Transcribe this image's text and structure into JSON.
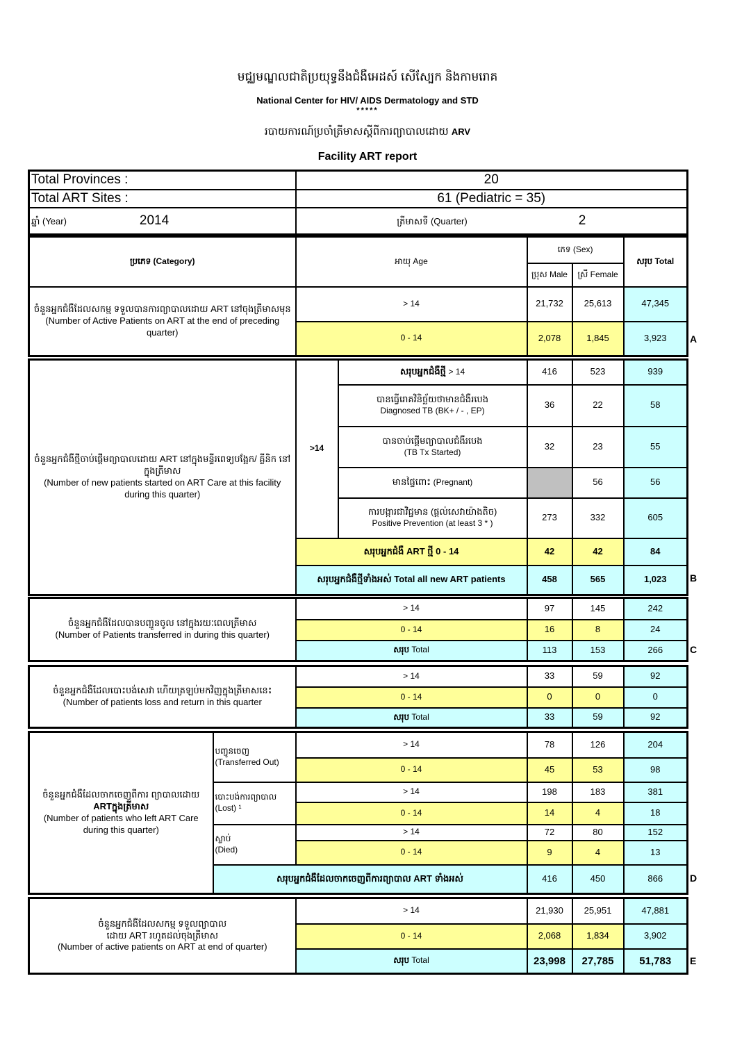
{
  "header": {
    "khmer_org": "មជ្ឈមណ្ឌលជាតិប្រយុទ្ធនឹងជំងឺអេដស៍ សើស្បែក និងកាមរោគ",
    "org": "National Center for HIV/ AIDS Dermatology and STD",
    "stars": "*****",
    "khmer_report": "របាយការណ៍ប្រចាំត្រីមាសស្តីពីការព្យាបាលដោយ",
    "report_arv": "ARV",
    "report": "Facility ART report"
  },
  "info": {
    "provinces_label": "Total Provinces :",
    "provinces": "20",
    "sites_label": "Total ART Sites :",
    "sites": "61 (Pediatric = 35)",
    "year_label": "ឆ្នាំ (Year)",
    "year": "2014",
    "quarter_label": "ត្រីមាសទី (Quarter)",
    "quarter": "2"
  },
  "columns": {
    "category": "ប្រភេទ (Category)",
    "age": "អាយុ Age",
    "sex": "ភេទ (Sex)",
    "male": "ប្រុស Male",
    "female": "ស្រី Female",
    "total": "សរុប Total"
  },
  "labels": {
    "gt14": "> 14",
    "age014": "0 - 14",
    "sum_total": "សរុប",
    "total_en": "Total"
  },
  "A": {
    "letter": "A",
    "desc_kh": "ចំនួនអ្នកជំងឺដែលសកម្ម ទទួលបានការព្យាបាលដោយ ART នៅចុងត្រីមាសមុន",
    "desc_en": "(Number of Active Patients on ART at the end of preceding quarter)",
    "rows": [
      {
        "male": "21,732",
        "female": "25,613",
        "total": "47,345"
      },
      {
        "male": "2,078",
        "female": "1,845",
        "total": "3,923"
      }
    ]
  },
  "B": {
    "letter": "B",
    "desc_kh": "ចំនួនអ្នកជំងឺថ្មីចាប់ផ្តើមព្យាបាលដោយ ART នៅក្នុងមន្ទីរពេទ្យបង្អែក/ គ្លីនិក នៅក្នុងត្រីមាស",
    "desc_en": "(Number of new patients started on ART Care at this facility during this quarter)",
    "age": ">14",
    "rows": [
      {
        "kh": "សរុបអ្នកជំងឺថ្មី",
        "en": "> 14",
        "male": "416",
        "female": "523",
        "total": "939"
      },
      {
        "kh": "បានធ្វើរោគវិនិច្ឆ័យថាមានជំងឺរបេង",
        "en": "Diagnosed TB (BK+ / - , EP)",
        "male": "36",
        "female": "22",
        "total": "58"
      },
      {
        "kh": "បានចាប់ផ្តើមព្យាបាលជំងឺរបេង",
        "en": "(TB Tx Started)",
        "male": "32",
        "female": "23",
        "total": "55"
      },
      {
        "kh": "មានផ្ទៃពោះ",
        "en": "(Pregnant)",
        "male": "",
        "female": "56",
        "total": "56"
      },
      {
        "kh": "ការបង្ការជាវិជ្ជមាន (ផ្តល់សេវាយ៉ាងតិច)",
        "en": "Positive Prevention (at least 3 * )",
        "male": "273",
        "female": "332",
        "total": "605"
      }
    ],
    "ped": {
      "label": "សរុបអ្នកជំងឺ ART ថ្មី 0 - 14",
      "male": "42",
      "female": "42",
      "total": "84"
    },
    "all": {
      "label": "សរុបអ្នកជំងឺថ្មីទាំងអស់ Total all new ART patients",
      "male": "458",
      "female": "565",
      "total": "1,023"
    }
  },
  "C": {
    "letter": "C",
    "desc_kh": "ចំនួនអ្នកជំងឺដែលបានបញ្ជូនចូល នៅក្នុងរយៈពេលត្រីមាស",
    "desc_en": "(Number of Patients transferred in during this quarter)",
    "rows": [
      {
        "male": "97",
        "female": "145",
        "total": "242"
      },
      {
        "male": "16",
        "female": "8",
        "total": "24"
      },
      {
        "male": "113",
        "female": "153",
        "total": "266"
      }
    ]
  },
  "L": {
    "desc_kh": "ចំនួនអ្នកជំងឺដែលបោះបង់សេវា ហើយត្រឡប់មកវិញក្នុងត្រីមាសនេះ",
    "desc_en": "(Number of patients loss and return in this quarter",
    "rows": [
      {
        "male": "33",
        "female": "59",
        "total": "92"
      },
      {
        "male": "0",
        "female": "0",
        "total": "0"
      },
      {
        "male": "33",
        "female": "59",
        "total": "92"
      }
    ]
  },
  "D": {
    "letter": "D",
    "desc_kh1": "ចំនួនអ្នកជំងឺដែលចាកចេញពីការ ព្យាបាលដោយ",
    "desc_kh2": "ARTក្នុងត្រីមាស",
    "desc_en": "(Number of patients who left ART Care during this quarter)",
    "groups": [
      {
        "kh": "បញ្ជូនចេញ",
        "en": "(Transferred Out)",
        "rows": [
          {
            "male": "78",
            "female": "126",
            "total": "204"
          },
          {
            "male": "45",
            "female": "53",
            "total": "98"
          }
        ]
      },
      {
        "kh": "បោះបង់ការព្យាបាល",
        "en": "(Lost) ¹",
        "rows": [
          {
            "male": "198",
            "female": "183",
            "total": "381"
          },
          {
            "male": "14",
            "female": "4",
            "total": "18"
          }
        ]
      },
      {
        "kh": "ស្លាប់",
        "en": "(Died)",
        "rows": [
          {
            "male": "72",
            "female": "80",
            "total": "152"
          },
          {
            "male": "9",
            "female": "4",
            "total": "13"
          }
        ]
      }
    ],
    "total": {
      "label": "សរុបអ្នកជំងឺដែលចាកចេញពីការព្យាបាល ART ទាំងអស់",
      "male": "416",
      "female": "450",
      "total": "866"
    }
  },
  "E": {
    "letter": "E",
    "desc_kh1": "ចំនួនអ្នកជំងឺដែលសកម្ម ទទួលព្យាបាល",
    "desc_kh2": "ដោយ ART រហូតដល់ចុងត្រីមាស",
    "desc_en": "(Number of active patients on ART at end of quarter)",
    "rows": [
      {
        "male": "21,930",
        "female": "25,951",
        "total": "47,881"
      },
      {
        "male": "2,068",
        "female": "1,834",
        "total": "3,902"
      },
      {
        "male": "23,998",
        "female": "27,785",
        "total": "51,783"
      }
    ]
  },
  "colors": {
    "yellow": "#ffff99",
    "cyan": "#ccffff",
    "gray": "#c0c0c0"
  }
}
